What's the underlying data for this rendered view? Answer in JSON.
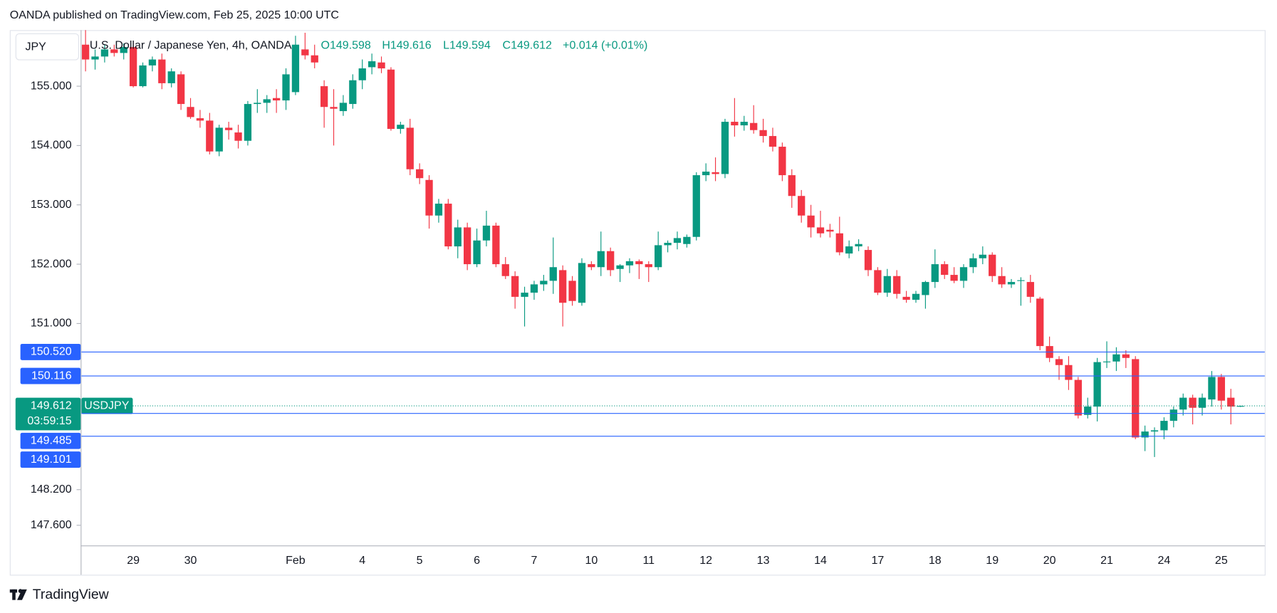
{
  "chart_data": {
    "type": "candlestick",
    "title": "OANDA published on TradingView.com, Feb 25, 2025 10:00 UTC",
    "symbol_box": "JPY",
    "legend": {
      "name": "U.S. Dollar / Japanese Yen, 4h, OANDA",
      "open": "O149.598",
      "high": "H149.616",
      "low": "L149.594",
      "close": "C149.612",
      "change": "+0.014 (+0.01%)"
    },
    "footer": "TradingView",
    "up_color": "#089981",
    "down_color": "#f23645",
    "ylim": [
      147.26,
      155.945
    ],
    "yticks": [
      {
        "value": 155,
        "label": "155.000"
      },
      {
        "value": 154,
        "label": "154.000"
      },
      {
        "value": 153,
        "label": "153.000"
      },
      {
        "value": 152,
        "label": "152.000"
      },
      {
        "value": 151,
        "label": "151.000"
      },
      {
        "value": 148.2,
        "label": "148.200"
      },
      {
        "value": 147.6,
        "label": "147.600"
      }
    ],
    "grid": false,
    "price_lines": [
      {
        "value": 150.52,
        "label": "150.520",
        "color": "#2962ff"
      },
      {
        "value": 150.116,
        "label": "150.116",
        "color": "#2962ff"
      },
      {
        "value": 149.485,
        "label": "149.485",
        "color": "#2962ff"
      },
      {
        "value": 149.101,
        "label": "149.101",
        "color": "#2962ff"
      }
    ],
    "current_price": {
      "value": 149.612,
      "label": "149.612",
      "countdown": "03:59:15",
      "symbol": "USDJPY",
      "color": "#089981"
    },
    "categories": [
      null,
      null,
      null,
      null,
      null,
      "29",
      null,
      null,
      null,
      null,
      null,
      "30",
      null,
      null,
      null,
      null,
      null,
      null,
      null,
      null,
      null,
      null,
      "Feb",
      null,
      null,
      null,
      null,
      null,
      null,
      "4",
      null,
      null,
      null,
      null,
      null,
      "5",
      null,
      null,
      null,
      null,
      null,
      "6",
      null,
      null,
      null,
      null,
      null,
      "7",
      null,
      null,
      null,
      null,
      null,
      "10",
      null,
      null,
      null,
      null,
      null,
      "11",
      null,
      null,
      null,
      null,
      null,
      "12",
      null,
      null,
      null,
      null,
      null,
      "13",
      null,
      null,
      null,
      null,
      null,
      "14",
      null,
      null,
      null,
      null,
      null,
      "17",
      null,
      null,
      null,
      null,
      null,
      "18",
      null,
      null,
      null,
      null,
      null,
      "19",
      null,
      null,
      null,
      null,
      null,
      "20",
      null,
      null,
      null,
      null,
      null,
      "21",
      null,
      null,
      null,
      null,
      null,
      "24",
      null,
      null,
      null,
      null,
      null,
      "25",
      null,
      null
    ],
    "open": [
      155.7,
      155.45,
      155.5,
      155.62,
      155.56,
      155.66,
      155.0,
      155.35,
      155.45,
      155.05,
      155.2,
      154.65,
      154.46,
      154.42,
      153.9,
      154.3,
      154.22,
      154.08,
      154.7,
      154.72,
      154.8,
      154.76,
      154.9,
      155.62,
      155.52,
      155.0,
      154.65,
      154.58,
      154.7,
      155.1,
      155.32,
      155.4,
      155.28,
      154.28,
      154.3,
      153.6,
      153.42,
      152.82,
      153.02,
      152.3,
      152.62,
      152.0,
      152.4,
      152.65,
      152.0,
      151.8,
      151.45,
      151.52,
      151.66,
      151.72,
      151.9,
      151.72,
      151.35,
      152.0,
      151.95,
      152.22,
      151.92,
      151.98,
      152.05,
      152.0,
      151.95,
      152.32,
      152.36,
      152.34,
      152.46,
      153.5,
      153.55,
      153.52,
      154.4,
      154.34,
      154.38,
      154.26,
      154.16,
      153.98,
      153.5,
      153.15,
      152.82,
      152.62,
      152.58,
      152.52,
      152.18,
      152.3,
      152.24,
      151.9,
      151.52,
      151.8,
      151.45,
      151.4,
      151.48,
      151.7,
      152.0,
      151.82,
      151.72,
      151.95,
      152.1,
      152.16,
      151.8,
      151.66,
      151.72,
      151.7,
      151.42,
      150.62,
      150.4,
      150.3,
      150.05,
      149.46,
      149.6,
      150.35,
      150.36,
      150.48,
      150.4,
      149.08,
      149.18,
      149.2,
      149.36,
      149.55,
      149.75,
      149.58,
      149.72,
      150.1,
      149.75,
      149.598
    ],
    "high": [
      155.95,
      155.62,
      155.7,
      155.7,
      155.72,
      155.75,
      155.4,
      155.5,
      155.55,
      155.3,
      155.25,
      154.8,
      154.6,
      154.55,
      154.35,
      154.4,
      154.35,
      154.75,
      154.95,
      154.85,
      154.95,
      155.3,
      155.85,
      155.9,
      155.7,
      155.1,
      154.95,
      154.85,
      155.2,
      155.45,
      155.55,
      155.5,
      155.32,
      154.4,
      154.45,
      153.7,
      153.5,
      153.1,
      153.1,
      152.75,
      152.7,
      152.6,
      152.9,
      152.7,
      152.12,
      151.88,
      151.62,
      151.72,
      151.82,
      152.45,
      151.98,
      151.8,
      152.1,
      152.05,
      152.55,
      152.28,
      152.0,
      152.1,
      152.08,
      152.05,
      152.55,
      152.4,
      152.55,
      152.5,
      153.55,
      153.7,
      153.8,
      154.45,
      154.8,
      154.5,
      154.68,
      154.45,
      154.3,
      154.05,
      153.6,
      153.25,
      153.0,
      152.9,
      152.68,
      152.8,
      152.4,
      152.42,
      152.3,
      151.95,
      151.92,
      151.9,
      151.55,
      151.55,
      151.72,
      152.25,
      152.05,
      151.95,
      152.0,
      152.18,
      152.3,
      152.2,
      151.95,
      151.75,
      151.78,
      151.82,
      151.45,
      150.78,
      150.45,
      150.45,
      150.1,
      149.75,
      150.42,
      150.7,
      150.6,
      150.55,
      150.45,
      149.28,
      149.25,
      149.42,
      149.6,
      149.82,
      149.8,
      149.82,
      150.2,
      150.15,
      149.9,
      149.616
    ],
    "low": [
      155.25,
      155.28,
      155.4,
      155.5,
      155.45,
      154.98,
      154.98,
      155.25,
      154.95,
      154.98,
      154.6,
      154.45,
      154.3,
      153.85,
      153.82,
      154.1,
      153.95,
      154.0,
      154.55,
      154.55,
      154.55,
      154.6,
      154.85,
      155.45,
      155.3,
      154.3,
      154.0,
      154.5,
      154.62,
      154.95,
      155.2,
      155.22,
      154.25,
      154.2,
      153.5,
      153.35,
      152.6,
      152.7,
      152.25,
      152.1,
      151.9,
      151.95,
      152.3,
      151.95,
      151.75,
      151.25,
      150.95,
      151.4,
      151.55,
      151.5,
      150.95,
      151.3,
      151.3,
      151.9,
      151.8,
      151.8,
      151.7,
      151.85,
      151.75,
      151.7,
      151.9,
      152.2,
      152.25,
      152.28,
      152.4,
      153.4,
      153.4,
      153.45,
      154.15,
      154.25,
      154.2,
      154.05,
      153.9,
      153.4,
      152.95,
      152.7,
      152.45,
      152.45,
      152.45,
      152.15,
      152.1,
      152.22,
      151.8,
      151.48,
      151.45,
      151.42,
      151.35,
      151.35,
      151.25,
      151.6,
      151.75,
      151.68,
      151.6,
      151.85,
      152.0,
      151.7,
      151.6,
      151.6,
      151.3,
      151.35,
      150.55,
      150.35,
      150.05,
      149.88,
      149.4,
      149.4,
      149.35,
      150.25,
      150.2,
      150.25,
      149.05,
      148.85,
      148.75,
      149.05,
      149.25,
      149.45,
      149.3,
      149.45,
      149.6,
      149.55,
      149.3,
      149.594
    ],
    "close": [
      155.45,
      155.5,
      155.62,
      155.56,
      155.66,
      155.0,
      155.35,
      155.45,
      155.05,
      155.25,
      154.7,
      154.48,
      154.42,
      153.9,
      154.3,
      154.26,
      154.08,
      154.7,
      154.72,
      154.78,
      154.76,
      155.2,
      155.7,
      155.52,
      155.4,
      154.65,
      154.62,
      154.72,
      155.1,
      155.3,
      155.42,
      155.3,
      154.28,
      154.35,
      153.6,
      153.45,
      152.82,
      153.02,
      152.3,
      152.62,
      152.0,
      152.4,
      152.65,
      152.0,
      151.8,
      151.45,
      151.52,
      151.66,
      151.72,
      151.95,
      151.35,
      151.38,
      152.02,
      151.95,
      152.22,
      151.9,
      151.98,
      152.05,
      152.0,
      151.95,
      152.32,
      152.36,
      152.44,
      152.46,
      153.5,
      153.56,
      153.52,
      154.4,
      154.34,
      154.4,
      154.26,
      154.16,
      153.98,
      153.5,
      153.15,
      152.82,
      152.62,
      152.52,
      152.55,
      152.2,
      152.3,
      152.34,
      151.9,
      151.52,
      151.8,
      151.5,
      151.4,
      151.5,
      151.7,
      152.0,
      151.82,
      151.72,
      151.95,
      152.1,
      152.16,
      151.8,
      151.66,
      151.7,
      151.73,
      151.45,
      150.62,
      150.42,
      150.3,
      150.05,
      149.45,
      149.6,
      150.35,
      150.36,
      150.48,
      150.42,
      149.08,
      149.18,
      149.2,
      149.36,
      149.55,
      149.75,
      149.58,
      149.75,
      150.1,
      149.7,
      149.6,
      149.612
    ]
  }
}
